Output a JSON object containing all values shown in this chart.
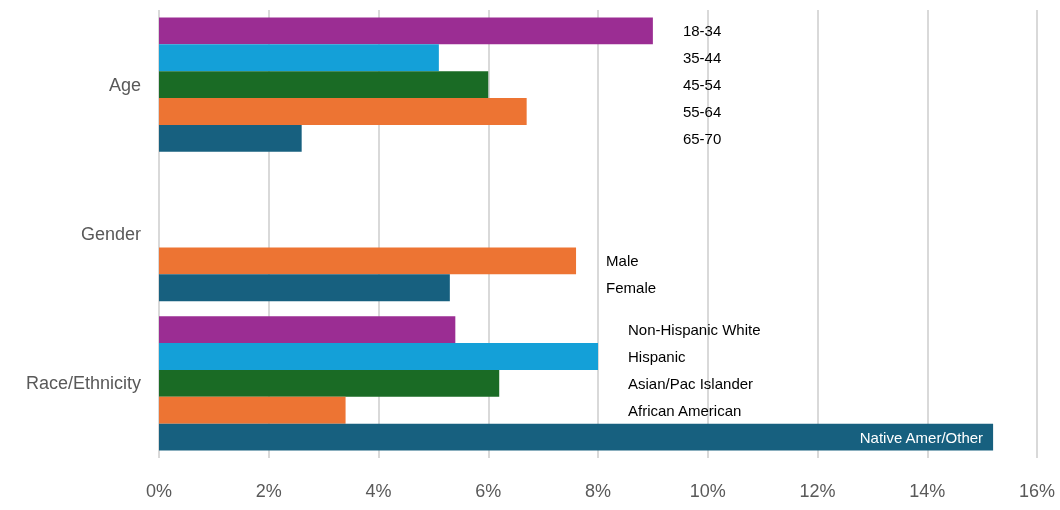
{
  "chart_data": {
    "type": "bar",
    "orientation": "horizontal",
    "categories": [
      "Age",
      "Gender",
      "Race/Ethnicity"
    ],
    "series": [
      {
        "color": "#9b2d93",
        "values": [
          9.0,
          null,
          5.4
        ]
      },
      {
        "color": "#14a0d8",
        "values": [
          5.1,
          null,
          8.0
        ]
      },
      {
        "color": "#1a6b25",
        "values": [
          6.0,
          null,
          6.2
        ]
      },
      {
        "color": "#ed7433",
        "values": [
          6.7,
          7.6,
          3.4
        ]
      },
      {
        "color": "#17607f",
        "values": [
          2.6,
          5.3,
          15.2
        ]
      }
    ],
    "xlim": [
      0,
      16
    ],
    "xticks": [
      {
        "value": 0,
        "label": "0%"
      },
      {
        "value": 2,
        "label": "2%"
      },
      {
        "value": 4,
        "label": "4%"
      },
      {
        "value": 6,
        "label": "6%"
      },
      {
        "value": 8,
        "label": "8%"
      },
      {
        "value": 10,
        "label": "10%"
      },
      {
        "value": 12,
        "label": "12%"
      },
      {
        "value": 14,
        "label": "14%"
      },
      {
        "value": 16,
        "label": "16%"
      }
    ],
    "grid": "x",
    "annotations": [
      "18-34",
      "35-44",
      "45-54",
      "55-64",
      "65-70",
      "Male",
      "Female",
      "Non-Hispanic White",
      "Hispanic",
      "Asian/Pac Islander",
      "African American",
      "Native Amer/Other"
    ]
  }
}
